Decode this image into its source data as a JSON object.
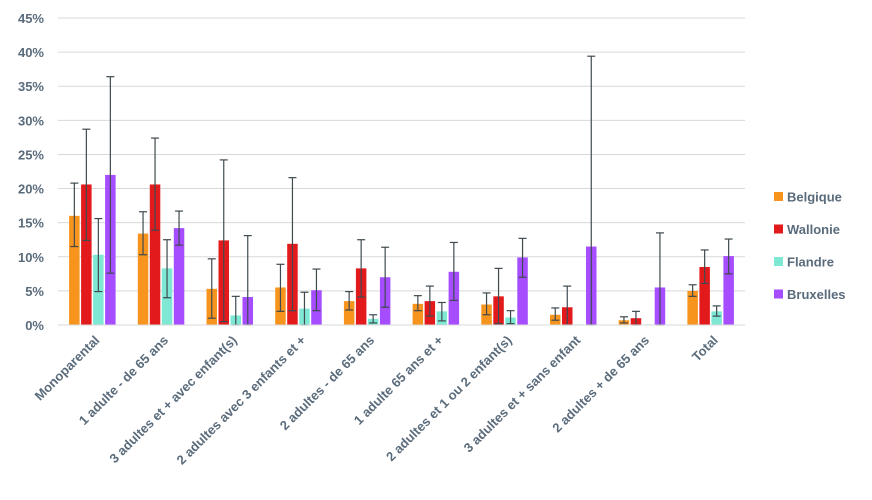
{
  "chart_data": {
    "type": "bar",
    "categories": [
      "Monoparental",
      "1 adulte - de 65 ans",
      "3 adultes et + avec enfant(s)",
      "2 adultes avec 3 enfants et +",
      "2 adultes - de 65 ans",
      "1 adulte 65 ans et +",
      "2 adultes et 1 ou 2 enfant(s)",
      "3 adultes et + sans enfant",
      "2 adultes + de 65 ans",
      "Total"
    ],
    "series": [
      {
        "name": "Belgique",
        "color": "#f7941d",
        "values": [
          16.0,
          13.4,
          5.3,
          5.5,
          3.5,
          3.1,
          3.0,
          1.5,
          0.7,
          5.0
        ],
        "err_low": [
          11.5,
          10.3,
          1.0,
          2.0,
          2.2,
          2.1,
          1.5,
          0.7,
          0.3,
          4.2
        ],
        "err_high": [
          20.8,
          16.6,
          9.7,
          8.9,
          4.9,
          4.3,
          4.7,
          2.5,
          1.2,
          5.9
        ]
      },
      {
        "name": "Wallonie",
        "color": "#e31a1c",
        "values": [
          20.6,
          20.6,
          12.4,
          11.9,
          8.3,
          3.5,
          4.2,
          2.6,
          1.0,
          8.5
        ],
        "err_low": [
          12.4,
          13.9,
          0.5,
          2.1,
          4.1,
          1.3,
          0.2,
          0.0,
          0.0,
          6.1
        ],
        "err_high": [
          28.7,
          27.4,
          24.2,
          21.6,
          12.5,
          5.7,
          8.3,
          5.7,
          2.0,
          11.0
        ]
      },
      {
        "name": "Flandre",
        "color": "#7fe8d4",
        "values": [
          10.3,
          8.3,
          1.4,
          2.4,
          0.9,
          2.0,
          1.1,
          0.0,
          0.0,
          2.0
        ],
        "err_low": [
          4.9,
          4.0,
          0.0,
          0.0,
          0.3,
          0.6,
          0.2,
          0.0,
          0.0,
          1.3
        ],
        "err_high": [
          15.6,
          12.5,
          4.2,
          4.8,
          1.5,
          3.3,
          2.1,
          0.0,
          0.0,
          2.8
        ]
      },
      {
        "name": "Bruxelles",
        "color": "#a64dff",
        "values": [
          22.0,
          14.2,
          4.1,
          5.1,
          7.0,
          7.8,
          9.9,
          11.5,
          5.5,
          10.1
        ],
        "err_low": [
          7.6,
          11.7,
          0.0,
          2.1,
          2.6,
          3.6,
          7.0,
          0.0,
          0.0,
          7.5
        ],
        "err_high": [
          36.4,
          16.7,
          13.1,
          8.2,
          11.4,
          12.1,
          12.7,
          39.4,
          13.5,
          12.6
        ]
      }
    ],
    "y_ticks": [
      "0%",
      "5%",
      "10%",
      "15%",
      "20%",
      "25%",
      "30%",
      "35%",
      "40%",
      "45%"
    ],
    "ylim": [
      0,
      45
    ],
    "grid": true,
    "legend": "right",
    "xlabel": "",
    "ylabel": "",
    "title": ""
  }
}
